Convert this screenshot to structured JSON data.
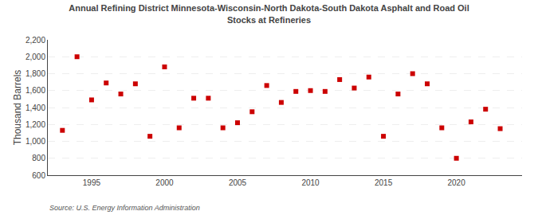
{
  "chart_data": {
    "type": "scatter",
    "title": "Annual Refining District Minnesota-Wisconsin-North Dakota-South Dakota Asphalt and Road Oil",
    "subtitle": "Stocks at Refineries",
    "y_label": "Thousand Barrels",
    "annotations": [
      "Source: U.S. Energy Information Administration"
    ],
    "x": [
      1993,
      1994,
      1995,
      1996,
      1997,
      1998,
      1999,
      2000,
      2001,
      2002,
      2003,
      2004,
      2005,
      2006,
      2007,
      2008,
      2009,
      2010,
      2011,
      2012,
      2013,
      2014,
      2015,
      2016,
      2017,
      2018,
      2019,
      2020,
      2021,
      2022,
      2023
    ],
    "values": [
      1130,
      2000,
      1490,
      1690,
      1560,
      1680,
      1060,
      1880,
      1160,
      1510,
      1510,
      1160,
      1220,
      1350,
      1660,
      1460,
      1590,
      1600,
      1590,
      1730,
      1630,
      1760,
      1060,
      1560,
      1800,
      1680,
      1160,
      800,
      1230,
      1380,
      1150
    ],
    "color": "#cc0000",
    "marker": "square",
    "xlim": [
      1992.0,
      2024.5
    ],
    "xticks": [
      1995,
      2000,
      2005,
      2010,
      2015,
      2020
    ],
    "ylim": [
      600,
      2200
    ],
    "yticks": [
      600,
      800,
      {
        "value": 1000,
        "label": "1,000"
      },
      {
        "value": 1200,
        "label": "1,200"
      },
      {
        "value": 1400,
        "label": "1,400"
      },
      {
        "value": 1600,
        "label": "1,600"
      },
      {
        "value": 1800,
        "label": "1,800"
      },
      {
        "value": 2000,
        "label": "2,000"
      },
      {
        "value": 2200,
        "label": "2,200"
      }
    ],
    "grid": "y"
  }
}
